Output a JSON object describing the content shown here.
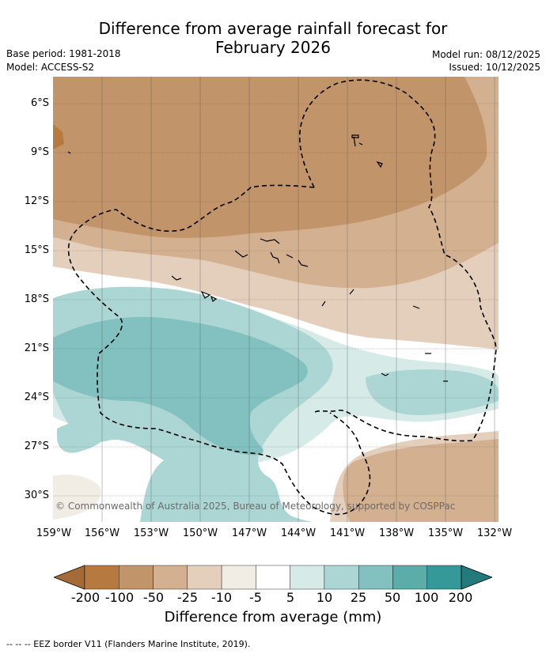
{
  "title": {
    "line1": "Difference from average rainfall forecast for",
    "line2": "February 2026"
  },
  "meta": {
    "base_period": "Base period: 1981-2018",
    "model": "Model: ACCESS-S2",
    "model_run": "Model run: 08/12/2025",
    "issued": "Issued: 10/12/2025"
  },
  "map": {
    "lat_ticks": [
      "6°S",
      "9°S",
      "12°S",
      "15°S",
      "18°S",
      "21°S",
      "24°S",
      "27°S",
      "30°S"
    ],
    "lon_ticks": [
      "159°W",
      "156°W",
      "153°W",
      "150°W",
      "147°W",
      "144°W",
      "141°W",
      "138°W",
      "135°W",
      "132°W"
    ],
    "copyright": "© Commonwealth of Australia 2025, Bureau of Meteorology, supported by COSPPac"
  },
  "colorbar": {
    "labels": [
      "-200",
      "-100",
      "-50",
      "-25",
      "-10",
      "-5",
      "5",
      "10",
      "25",
      "50",
      "100",
      "200"
    ],
    "colors": [
      "#a56b36",
      "#b67a41",
      "#c2946a",
      "#d3b08f",
      "#e4cfbd",
      "#f1ece4",
      "#ffffff",
      "#d6eae8",
      "#acd6d4",
      "#82c1bf",
      "#5badaa",
      "#35999a",
      "#247a7b"
    ],
    "title": "Difference from average (mm)"
  },
  "footer": {
    "legend": "--  --  -- EEZ border V11 (Flanders Marine Institute, 2019)."
  }
}
